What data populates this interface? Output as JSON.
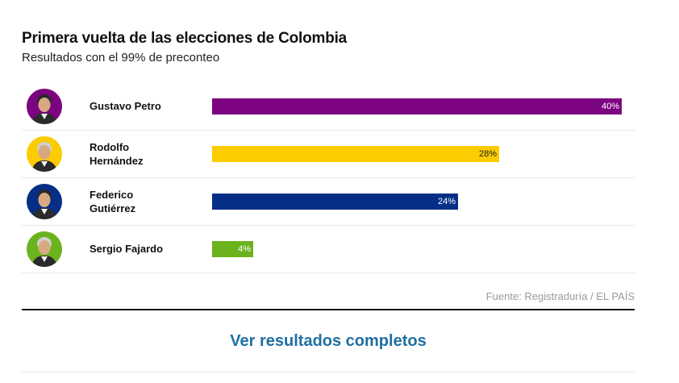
{
  "header": {
    "title": "Primera vuelta de las elecciones de Colombia",
    "subtitle": "Resultados con el 99% de preconteo"
  },
  "chart_data": {
    "type": "bar",
    "orientation": "horizontal",
    "title": "Primera vuelta de las elecciones de Colombia",
    "subtitle": "Resultados con el 99% de preconteo",
    "xlim": [
      0,
      40
    ],
    "categories": [
      "Gustavo Petro",
      "Rodolfo Hernández",
      "Federico Gutiérrez",
      "Sergio Fajardo"
    ],
    "name_lines": [
      [
        "Gustavo Petro"
      ],
      [
        "Rodolfo",
        "Hernández"
      ],
      [
        "Federico",
        "Gutiérrez"
      ],
      [
        "Sergio Fajardo"
      ]
    ],
    "values": [
      40,
      28,
      24,
      4
    ],
    "value_labels": [
      "40%",
      "28%",
      "24%",
      "4%"
    ],
    "colors": [
      "#7d0480",
      "#fbcc00",
      "#052f87",
      "#6ab31d"
    ],
    "label_colors": [
      "#ffffff",
      "#222222",
      "#ffffff",
      "#ffffff"
    ]
  },
  "footer": {
    "source": "Fuente: Registraduría / EL PAÍS",
    "cta_label": "Ver resultados completos"
  },
  "icons": {
    "avatar": "candidate-portrait-icon"
  }
}
